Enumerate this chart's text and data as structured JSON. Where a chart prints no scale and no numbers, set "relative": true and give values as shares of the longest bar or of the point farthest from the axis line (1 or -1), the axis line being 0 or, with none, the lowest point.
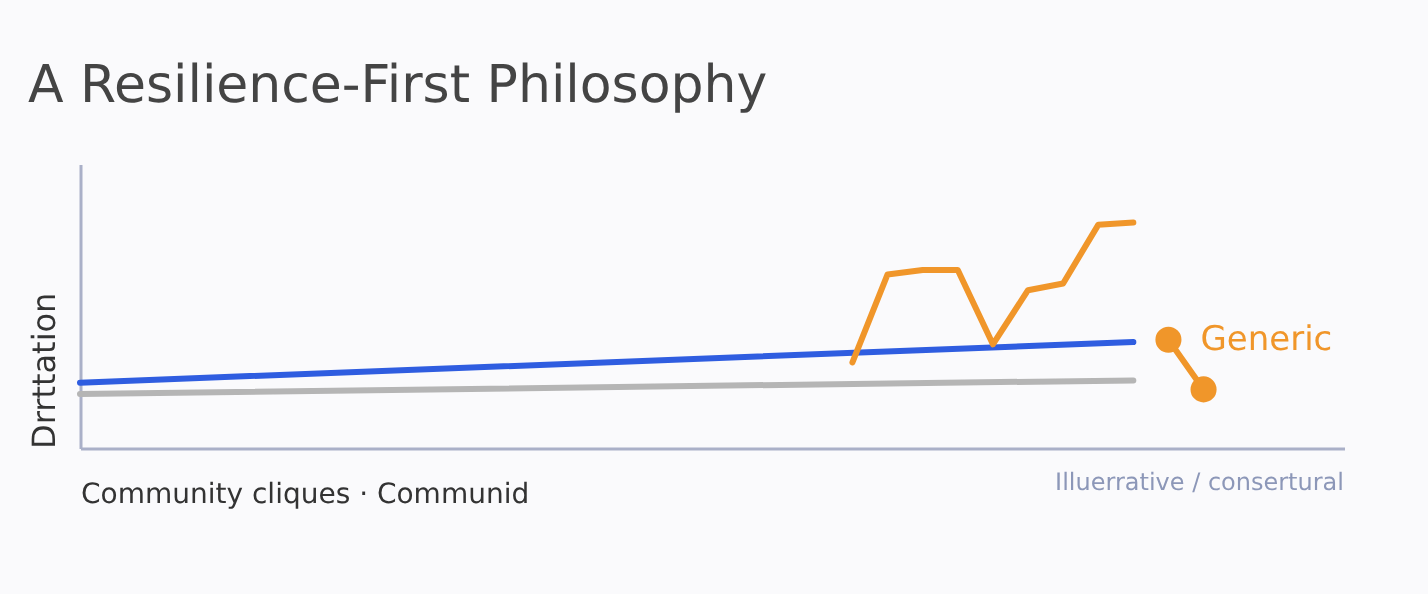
{
  "chart_data": {
    "type": "line",
    "title": "A Resilience-First Philosophy",
    "xlabel": "Community cliques · Communid",
    "ylabel": "Drrttation",
    "relative": true,
    "legend": false,
    "marker": "none",
    "line_style": "solid",
    "categories": [
      null,
      null,
      null,
      null,
      null,
      null,
      null,
      null,
      null,
      null,
      null,
      null,
      null,
      null,
      null,
      null,
      null,
      null,
      null,
      null,
      null,
      null,
      null,
      null,
      null,
      null,
      null,
      null,
      null,
      null,
      null,
      null,
      null,
      null,
      null,
      null,
      null
    ],
    "annotations": [
      "Illuerrative / consertural"
    ],
    "series": [
      {
        "color": "#2f5de0",
        "values": [
          0.29,
          null,
          null,
          null,
          null,
          null,
          null,
          null,
          null,
          null,
          null,
          null,
          null,
          null,
          null,
          null,
          null,
          null,
          null,
          null,
          null,
          null,
          null,
          null,
          null,
          null,
          null,
          null,
          null,
          null,
          0.47,
          null,
          null,
          null,
          null,
          null,
          null
        ]
      },
      {
        "color": "#b5b5b5",
        "values": [
          0.24,
          null,
          null,
          null,
          null,
          null,
          null,
          null,
          null,
          null,
          null,
          null,
          null,
          null,
          null,
          null,
          null,
          null,
          null,
          null,
          null,
          null,
          null,
          null,
          null,
          null,
          null,
          null,
          null,
          null,
          0.3,
          null,
          null,
          null,
          null,
          null,
          null
        ]
      },
      {
        "color": "#f0962a",
        "values": [
          null,
          null,
          null,
          null,
          null,
          null,
          null,
          null,
          null,
          null,
          null,
          null,
          null,
          null,
          null,
          null,
          null,
          null,
          null,
          null,
          null,
          null,
          0.38,
          0.77,
          0.79,
          0.79,
          0.46,
          0.7,
          0.73,
          0.99,
          1,
          null,
          null,
          null,
          null,
          null,
          null
        ]
      },
      {
        "name": "Generic",
        "marker": "circle",
        "color": "#f0962a",
        "values": [
          null,
          null,
          null,
          null,
          null,
          null,
          null,
          null,
          null,
          null,
          null,
          null,
          null,
          null,
          null,
          null,
          null,
          null,
          null,
          null,
          null,
          null,
          null,
          null,
          null,
          null,
          null,
          null,
          null,
          null,
          null,
          0.48,
          0.26,
          null,
          null,
          null,
          null
        ]
      }
    ]
  }
}
